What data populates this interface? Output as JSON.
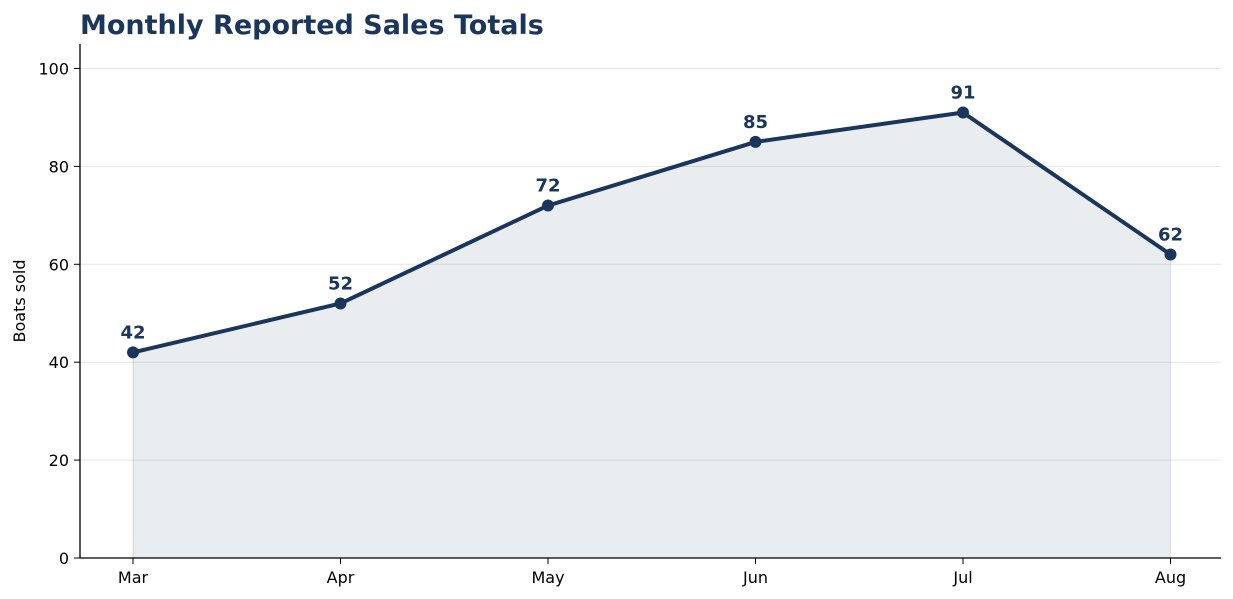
{
  "colors": {
    "series": "#1a365d",
    "area_fill": "#1a365d",
    "grid": "#e6e6e6",
    "axis": "#000000"
  },
  "chart_data": {
    "type": "area",
    "title": "Monthly Reported Sales Totals",
    "xlabel": "",
    "ylabel": "Boats sold",
    "categories": [
      "Mar",
      "Apr",
      "May",
      "Jun",
      "Jul",
      "Aug"
    ],
    "series": [
      {
        "values": [
          42,
          52,
          72,
          85,
          91,
          62
        ],
        "markers": true,
        "data_labels": true
      }
    ],
    "ylim": [
      0,
      105
    ],
    "yticks": [
      0,
      20,
      40,
      60,
      80,
      100
    ],
    "grid": "horizontal",
    "legend": "none",
    "spines": "left-bottom"
  }
}
